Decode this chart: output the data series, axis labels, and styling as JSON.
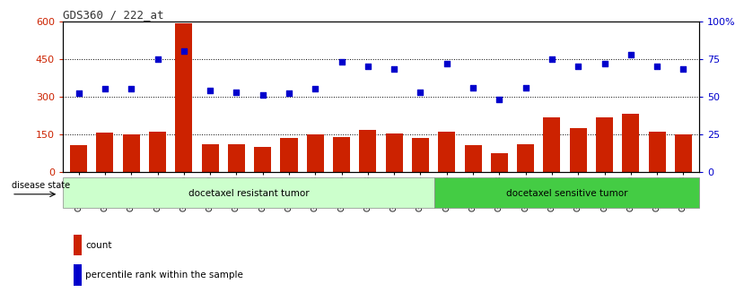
{
  "title": "GDS360 / 222_at",
  "samples": [
    "GSM4901",
    "GSM4902",
    "GSM4904",
    "GSM4905",
    "GSM4906",
    "GSM4909",
    "GSM4910",
    "GSM4911",
    "GSM4912",
    "GSM4913",
    "GSM4916",
    "GSM4918",
    "GSM4922",
    "GSM4924",
    "GSM4903",
    "GSM4907",
    "GSM4908",
    "GSM4914",
    "GSM4915",
    "GSM4917",
    "GSM4919",
    "GSM4920",
    "GSM4921",
    "GSM4923"
  ],
  "counts": [
    105,
    155,
    150,
    160,
    590,
    108,
    110,
    100,
    135,
    147,
    138,
    165,
    152,
    135,
    160,
    105,
    75,
    110,
    215,
    175,
    215,
    230,
    158,
    148
  ],
  "percentiles": [
    52,
    55,
    55,
    75,
    80,
    54,
    53,
    51,
    52,
    55,
    73,
    70,
    68,
    53,
    72,
    56,
    48,
    56,
    75,
    70,
    72,
    78,
    70,
    68
  ],
  "resistant_count": 14,
  "sensitive_count": 10,
  "resistant_label": "docetaxel resistant tumor",
  "sensitive_label": "docetaxel sensitive tumor",
  "disease_state_label": "disease state",
  "bar_color": "#cc2200",
  "dot_color": "#0000cc",
  "ylim_left": [
    0,
    600
  ],
  "ylim_right": [
    0,
    100
  ],
  "yticks_left": [
    0,
    150,
    300,
    450,
    600
  ],
  "ytick_labels_left": [
    "0",
    "150",
    "300",
    "450",
    "600"
  ],
  "yticks_right": [
    0,
    25,
    50,
    75,
    100
  ],
  "ytick_labels_right": [
    "0",
    "25",
    "50",
    "75",
    "100%"
  ],
  "legend_count_label": "count",
  "legend_percentile_label": "percentile rank within the sample",
  "bg_color": "#ffffff",
  "plot_bg": "#ffffff",
  "resistant_bg": "#ccffcc",
  "sensitive_bg": "#44cc44",
  "title_color": "#333333"
}
